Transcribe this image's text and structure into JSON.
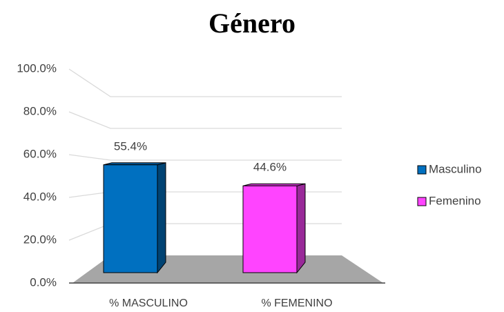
{
  "chart_data": {
    "type": "bar3d",
    "title": "Género",
    "categories": [
      "% MASCULINO",
      "% FEMENINO"
    ],
    "series": [
      {
        "name": "Masculino",
        "color": "#0070c0",
        "values": [
          55.4,
          null
        ],
        "value_labels": [
          "55.4%",
          null
        ]
      },
      {
        "name": "Femenino",
        "color": "#ff44ff",
        "values": [
          null,
          44.6
        ],
        "value_labels": [
          null,
          "44.6%"
        ]
      }
    ],
    "ylim": [
      0,
      100
    ],
    "yticks": [
      {
        "value": 0,
        "label": "0.0%"
      },
      {
        "value": 20,
        "label": "20.0%"
      },
      {
        "value": 40,
        "label": "40.0%"
      },
      {
        "value": 60,
        "label": "60.0%"
      },
      {
        "value": 80,
        "label": "80.0%"
      },
      {
        "value": 100,
        "label": "100.0%"
      }
    ],
    "grid": true,
    "legend": "right"
  }
}
